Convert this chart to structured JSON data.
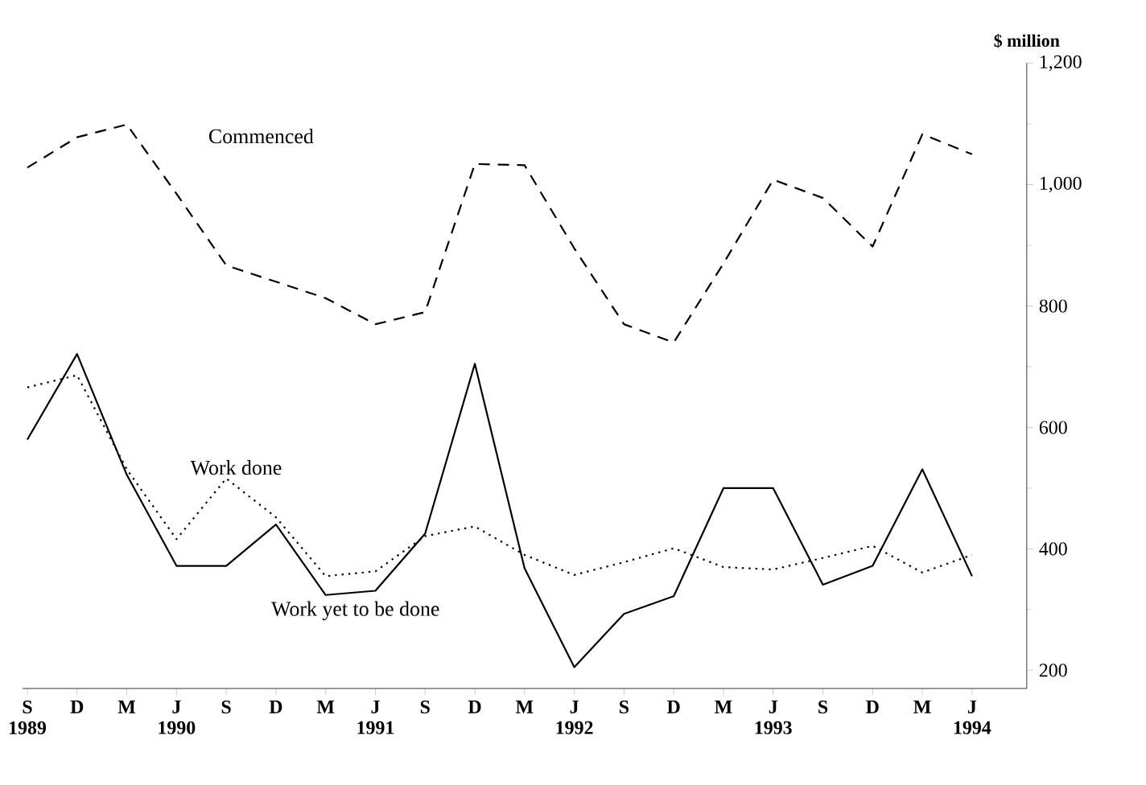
{
  "chart_data": {
    "type": "line",
    "categories": [
      "S 1989",
      "D",
      "M",
      "J 1990",
      "S",
      "D",
      "M",
      "J 1991",
      "S",
      "D",
      "M",
      "J 1992",
      "S",
      "D",
      "M",
      "J 1993",
      "S",
      "D",
      "M",
      "J 1994"
    ],
    "series": [
      {
        "name": "Commenced",
        "color": "#000000",
        "line_style": "dashed",
        "values": [
          1028,
          1078,
          1099,
          985,
          867,
          840,
          813,
          770,
          790,
          1034,
          1032,
          895,
          770,
          740,
          870,
          1008,
          978,
          898,
          1083,
          1050
        ]
      },
      {
        "name": "Work yet to be done",
        "color": "#000000",
        "line_style": "solid",
        "values": [
          580,
          721,
          522,
          372,
          372,
          440,
          324,
          331,
          425,
          705,
          368,
          205,
          293,
          322,
          500,
          500,
          341,
          372,
          531,
          355
        ]
      },
      {
        "name": "Work done",
        "color": "#000000",
        "line_style": "dotted",
        "values": [
          666,
          686,
          531,
          416,
          516,
          452,
          355,
          363,
          421,
          437,
          390,
          357,
          378,
          401,
          370,
          366,
          385,
          405,
          361,
          390
        ]
      }
    ],
    "ylabel": "$ million",
    "ylim": [
      170,
      1200
    ],
    "yticks": [
      200,
      400,
      600,
      800,
      {
        "value": 1000,
        "label": "1,000"
      },
      {
        "value": 1200,
        "label": "1,200"
      }
    ],
    "grid": false,
    "legend": false,
    "marker": "none"
  }
}
